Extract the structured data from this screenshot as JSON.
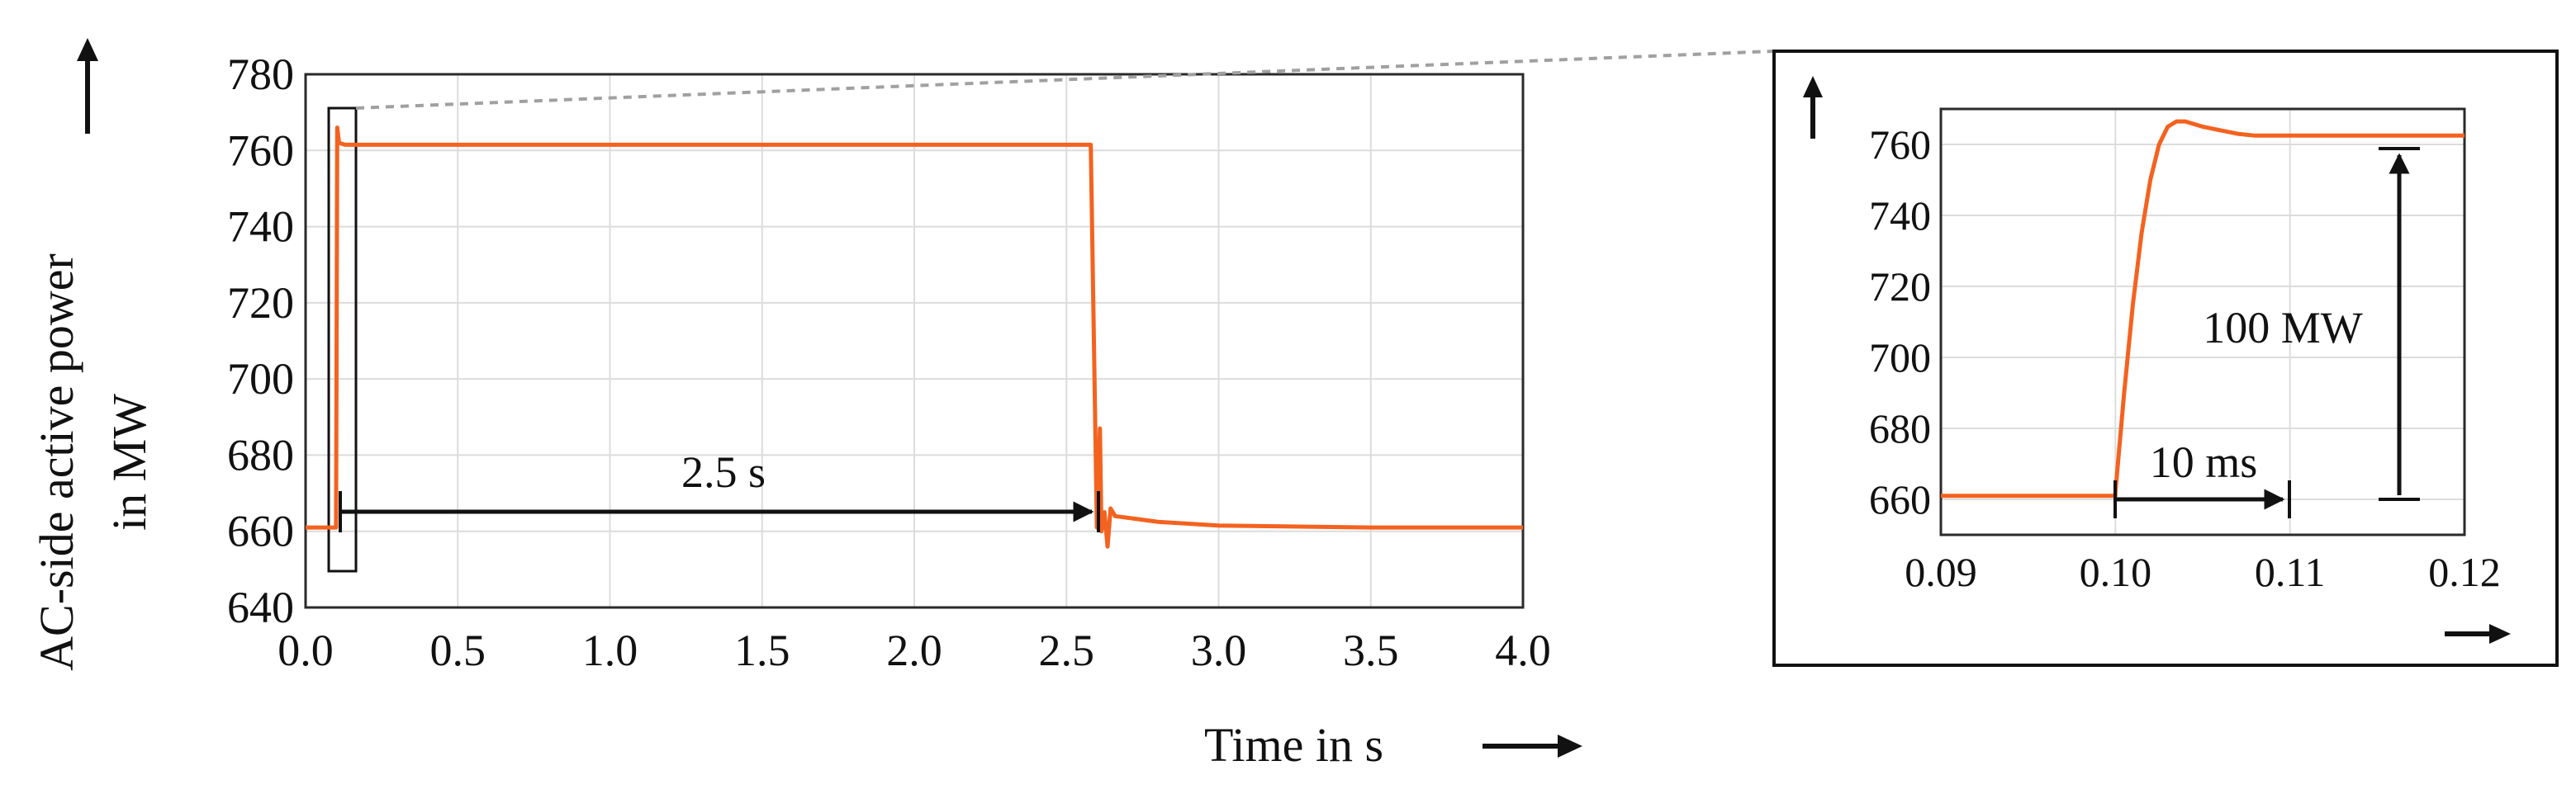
{
  "chart_data": [
    {
      "type": "line",
      "xlabel": "Time in s",
      "ylabel": "AC-side active power in MW",
      "ylabel_lines": [
        "AC-side active power",
        "in MW"
      ],
      "xlim": [
        0.0,
        4.0
      ],
      "ylim": [
        640,
        780
      ],
      "xticks": [
        "0.0",
        "0.5",
        "1.0",
        "1.5",
        "2.0",
        "2.5",
        "3.0",
        "3.5",
        "4.0"
      ],
      "yticks": [
        "640",
        "660",
        "680",
        "700",
        "720",
        "740",
        "760",
        "780"
      ],
      "grid": true,
      "series": [
        {
          "color": "#f4621f",
          "x": [
            0.0,
            0.1,
            0.104,
            0.11,
            0.13,
            0.3,
            1.0,
            2.0,
            2.58,
            2.6,
            2.61,
            2.615,
            2.625,
            2.635,
            2.645,
            2.66,
            2.8,
            3.0,
            3.5,
            4.0
          ],
          "y": [
            661,
            661,
            766,
            762,
            761.5,
            761.5,
            761.5,
            761.5,
            761.5,
            661,
            687,
            660,
            665,
            656,
            666,
            664,
            662.5,
            661.5,
            661,
            661
          ]
        }
      ],
      "annotations": [
        {
          "text": "2.5 s",
          "x_start": 0.1,
          "x_end": 2.6,
          "y": 665
        }
      ]
    },
    {
      "type": "line",
      "xlim": [
        0.09,
        0.12
      ],
      "ylim": [
        650,
        770
      ],
      "xticks": [
        "0.09",
        "0.10",
        "0.11",
        "0.12"
      ],
      "yticks": [
        "660",
        "680",
        "700",
        "720",
        "740",
        "760"
      ],
      "grid": true,
      "series": [
        {
          "color": "#f4621f",
          "x": [
            0.09,
            0.1,
            0.1,
            0.1005,
            0.101,
            0.1015,
            0.102,
            0.1025,
            0.103,
            0.1035,
            0.104,
            0.105,
            0.106,
            0.107,
            0.108,
            0.11,
            0.115,
            0.12
          ],
          "y": [
            661,
            661,
            662,
            690,
            715,
            735,
            750,
            760,
            765,
            766.5,
            766.5,
            765,
            764,
            763,
            762.5,
            762.5,
            762.5,
            762.5
          ]
        }
      ],
      "annotations": [
        {
          "text": "10 ms",
          "x_start": 0.1,
          "x_end": 0.11,
          "y": 660
        },
        {
          "text": "100 MW",
          "x": 0.1165,
          "y_start": 660,
          "y_end": 760
        }
      ]
    }
  ]
}
